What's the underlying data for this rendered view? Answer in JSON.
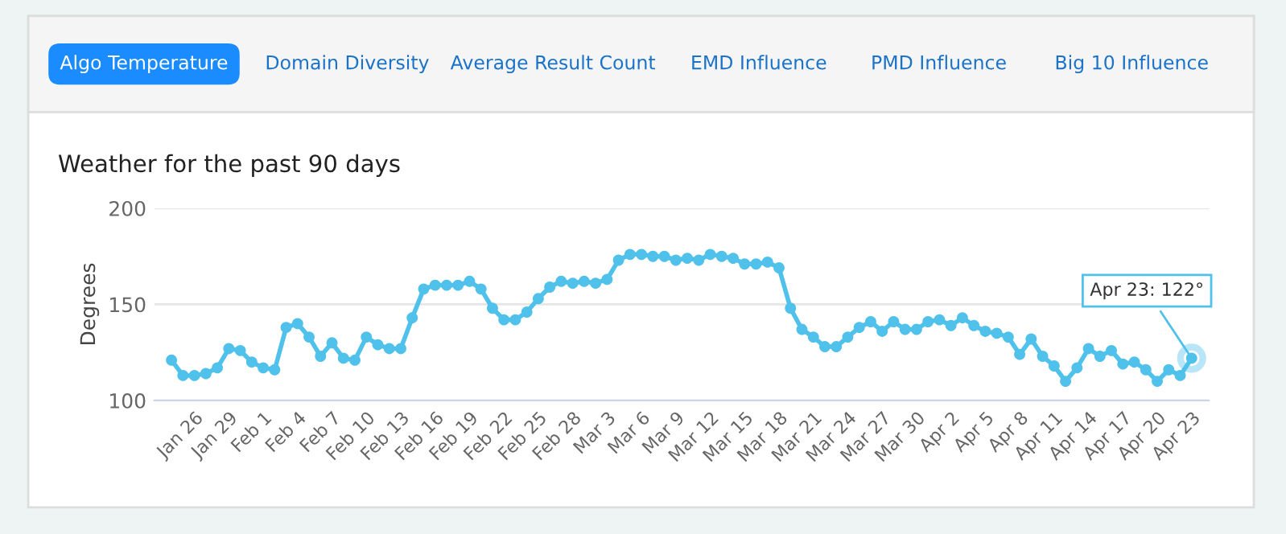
{
  "chart_data": {
    "type": "line",
    "title": "Weather for the past 90 days",
    "ylabel": "Degrees",
    "categories": [
      null,
      null,
      "Jan 26",
      null,
      null,
      "Jan 29",
      null,
      null,
      "Feb 1",
      null,
      null,
      "Feb 4",
      null,
      null,
      "Feb 7",
      null,
      null,
      "Feb 10",
      null,
      null,
      "Feb 13",
      null,
      null,
      "Feb 16",
      null,
      null,
      "Feb 19",
      null,
      null,
      "Feb 22",
      null,
      null,
      "Feb 25",
      null,
      null,
      "Feb 28",
      null,
      null,
      "Mar 3",
      null,
      null,
      "Mar 6",
      null,
      null,
      "Mar 9",
      null,
      null,
      "Mar 12",
      null,
      null,
      "Mar 15",
      null,
      null,
      "Mar 18",
      null,
      null,
      "Mar 21",
      null,
      null,
      "Mar 24",
      null,
      null,
      "Mar 27",
      null,
      null,
      "Mar 30",
      null,
      null,
      "Apr 2",
      null,
      null,
      "Apr 5",
      null,
      null,
      "Apr 8",
      null,
      null,
      "Apr 11",
      null,
      null,
      "Apr 14",
      null,
      null,
      "Apr 17",
      null,
      null,
      "Apr 20",
      null,
      null,
      "Apr 23"
    ],
    "series": [
      {
        "color": "#4fc1ea",
        "values": [
          121,
          113,
          113,
          114,
          117,
          127,
          126,
          120,
          117,
          116,
          138,
          140,
          133,
          123,
          130,
          122,
          121,
          133,
          129,
          127,
          127,
          143,
          158,
          160,
          160,
          160,
          162,
          158,
          148,
          142,
          142,
          146,
          153,
          159,
          162,
          161,
          162,
          161,
          163,
          173,
          176,
          176,
          175,
          175,
          173,
          174,
          173,
          176,
          175,
          174,
          171,
          171,
          172,
          169,
          148,
          137,
          133,
          128,
          128,
          133,
          138,
          141,
          136,
          141,
          137,
          137,
          141,
          142,
          139,
          143,
          139,
          136,
          135,
          133,
          124,
          132,
          123,
          118,
          110,
          117,
          127,
          123,
          126,
          119,
          120,
          116,
          110,
          116,
          113,
          122
        ]
      }
    ],
    "ylim": [
      100,
      200
    ],
    "yticks": [
      100,
      150,
      200
    ],
    "grid": "y",
    "marker": "circle",
    "line_style": "solid",
    "legend": false,
    "annotations": [
      "Algo Temperature",
      "Domain Diversity",
      "Average Result Count",
      "EMD Influence",
      "PMD Influence",
      "Big 10 Influence",
      {
        "text": "Apr 23: 122°",
        "x": "Apr 23",
        "y": 122
      }
    ]
  }
}
